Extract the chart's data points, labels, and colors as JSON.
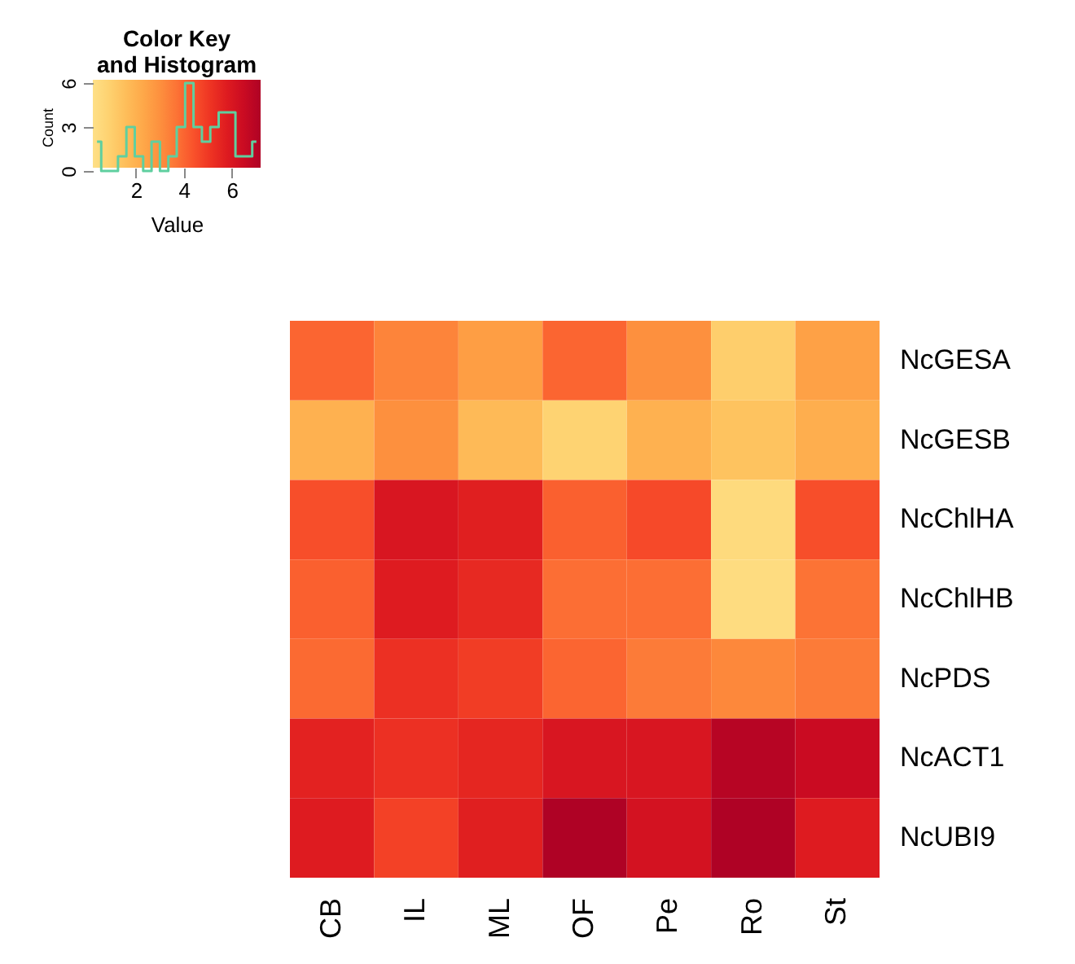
{
  "chart_data": [
    {
      "type": "step",
      "title": "Color Key\nand Histogram",
      "ylabel": "Count",
      "color": "#5fcf9f",
      "categories": [
        null,
        null,
        null,
        null,
        null,
        null,
        null,
        null,
        null,
        null,
        null,
        null,
        null,
        null,
        null,
        null,
        null,
        null,
        null,
        null
      ],
      "values": [
        2,
        0,
        0,
        1,
        3,
        1,
        0,
        2,
        0,
        1,
        3,
        6,
        3,
        2,
        3,
        4,
        4,
        1,
        1,
        2
      ],
      "ylim": [
        0,
        6
      ],
      "yticks": [
        0,
        3,
        6
      ],
      "tick_labels": "y"
    },
    {
      "type": "heatmap",
      "categories": [
        "CB",
        "IL",
        "ML",
        "OF",
        "Pe",
        "Ro",
        "St"
      ],
      "y_categories": [
        "NcGESA",
        "NcGESB",
        "NcChlHA",
        "NcChlHB",
        "NcPDS",
        "NcACT1",
        "NcUBI9"
      ],
      "cells": [
        [
          4.0,
          3.3,
          2.6,
          4.0,
          3.0,
          1.0,
          2.5
        ],
        [
          2.0,
          3.0,
          1.7,
          0.8,
          2.0,
          1.4,
          2.1
        ],
        [
          4.5,
          6.0,
          5.7,
          4.1,
          4.6,
          0.5,
          4.5
        ],
        [
          4.1,
          5.8,
          5.4,
          3.8,
          3.8,
          0.4,
          3.7
        ],
        [
          3.9,
          5.2,
          4.9,
          4.0,
          3.5,
          3.2,
          3.5
        ],
        [
          5.6,
          5.2,
          5.5,
          6.0,
          6.0,
          7.0,
          6.5
        ],
        [
          5.8,
          4.8,
          5.7,
          7.2,
          6.2,
          7.2,
          5.8
        ]
      ],
      "clim": [
        0.2,
        7.2
      ],
      "cticks": [
        2,
        4,
        6
      ],
      "clabel": "Value"
    }
  ]
}
